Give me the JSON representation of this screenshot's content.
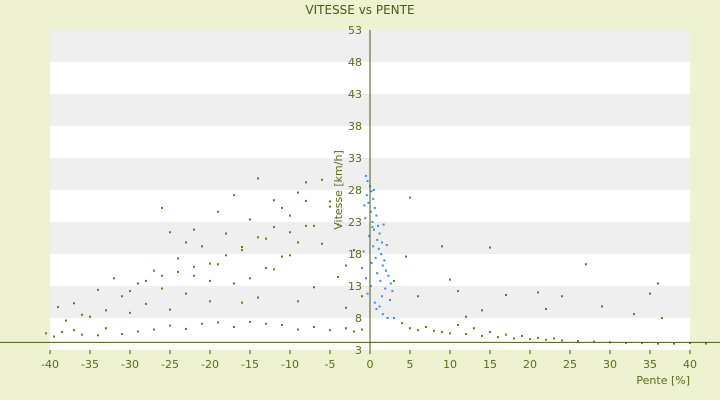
{
  "chart_data": {
    "type": "scatter",
    "title": "VITESSE vs PENTE",
    "xlabel": "Pente [%]",
    "ylabel": "Vitesse [km/h]",
    "xlim": [
      -40,
      40
    ],
    "ylim": [
      3,
      53
    ],
    "x_ticks": [
      -40,
      -35,
      -30,
      -25,
      -20,
      -15,
      -10,
      -5,
      0,
      5,
      10,
      15,
      20,
      25,
      30,
      35,
      40
    ],
    "y_ticks": [
      3,
      8,
      13,
      18,
      23,
      28,
      33,
      38,
      43,
      48,
      53
    ],
    "grid": true,
    "colors": {
      "background": "#eef2d0",
      "plot_band_light": "#ffffff",
      "plot_band_dark": "#efefef",
      "axis": "#4a5a14",
      "series_main": "#6b7a10",
      "series_highlight": "#3a8ee6"
    },
    "series": [
      {
        "color": "#6b7a10",
        "points": [
          [
            -40.5,
            5.6
          ],
          [
            -39.5,
            5.1
          ],
          [
            -38.5,
            5.8
          ],
          [
            -37,
            6.1
          ],
          [
            -36,
            5.4
          ],
          [
            -34,
            5.3
          ],
          [
            -33,
            6.4
          ],
          [
            -31,
            5.5
          ],
          [
            -29,
            5.9
          ],
          [
            -27,
            6.2
          ],
          [
            -25,
            6.8
          ],
          [
            -23,
            6.3
          ],
          [
            -21,
            7.1
          ],
          [
            -19,
            7.3
          ],
          [
            -17,
            6.6
          ],
          [
            -15,
            7.4
          ],
          [
            -13,
            7.1
          ],
          [
            -11,
            6.9
          ],
          [
            -9,
            6.2
          ],
          [
            -7,
            6.6
          ],
          [
            -5,
            6.1
          ],
          [
            -3,
            6.4
          ],
          [
            -2,
            5.9
          ],
          [
            -1,
            6.2
          ],
          [
            -39,
            9.7
          ],
          [
            -37,
            10.3
          ],
          [
            -36,
            8.5
          ],
          [
            -34,
            12.4
          ],
          [
            -33,
            9.2
          ],
          [
            -32,
            14.2
          ],
          [
            -31,
            11.4
          ],
          [
            -30,
            8.8
          ],
          [
            -29,
            13.4
          ],
          [
            -28,
            10.2
          ],
          [
            -27,
            15.4
          ],
          [
            -26,
            12.6
          ],
          [
            -25,
            9.3
          ],
          [
            -24,
            17.3
          ],
          [
            -23,
            11.8
          ],
          [
            -22,
            14.6
          ],
          [
            -21,
            19.2
          ],
          [
            -20,
            10.6
          ],
          [
            -19,
            16.4
          ],
          [
            -18,
            21.2
          ],
          [
            -17,
            13.4
          ],
          [
            -16,
            18.6
          ],
          [
            -15,
            23.4
          ],
          [
            -14,
            11.2
          ],
          [
            -13,
            20.4
          ],
          [
            -12,
            15.6
          ],
          [
            -11,
            25.2
          ],
          [
            -10,
            17.8
          ],
          [
            -9,
            27.6
          ],
          [
            -8,
            22.4
          ],
          [
            -7,
            12.8
          ],
          [
            -6,
            19.6
          ],
          [
            -5,
            26.2
          ],
          [
            -4,
            14.4
          ],
          [
            -3,
            9.6
          ],
          [
            -2,
            18.6
          ],
          [
            -26,
            25.2
          ],
          [
            -22,
            21.8
          ],
          [
            -19,
            24.6
          ],
          [
            -17,
            27.2
          ],
          [
            -12,
            26.4
          ],
          [
            -8,
            29.2
          ],
          [
            -6,
            29.6
          ],
          [
            -14,
            29.8
          ],
          [
            -23,
            19.8
          ],
          [
            -25,
            21.4
          ],
          [
            -20,
            13.8
          ],
          [
            -16,
            10.4
          ],
          [
            -30,
            12.2
          ],
          [
            -35,
            8.2
          ],
          [
            -38,
            7.6
          ],
          [
            -9,
            10.6
          ],
          [
            -4,
            22.6
          ],
          [
            -3,
            16.2
          ],
          [
            -1,
            11.4
          ],
          [
            -10,
            21.4
          ],
          [
            -20,
            16.5
          ],
          [
            -18,
            17.8
          ],
          [
            -16,
            19.1
          ],
          [
            -14,
            20.6
          ],
          [
            -12,
            22.2
          ],
          [
            -10,
            24.0
          ],
          [
            -8,
            26.3
          ],
          [
            -15,
            14.2
          ],
          [
            -13,
            15.8
          ],
          [
            -11,
            17.6
          ],
          [
            -9,
            19.8
          ],
          [
            -7,
            22.4
          ],
          [
            -5,
            25.4
          ],
          [
            -24,
            15.2
          ],
          [
            -22,
            16.0
          ],
          [
            -26,
            14.6
          ],
          [
            -28,
            13.8
          ],
          [
            4,
            7.2
          ],
          [
            5,
            6.4
          ],
          [
            6,
            6.1
          ],
          [
            7,
            6.6
          ],
          [
            8,
            6.0
          ],
          [
            9,
            5.8
          ],
          [
            10,
            5.6
          ],
          [
            12,
            5.5
          ],
          [
            14,
            5.2
          ],
          [
            16,
            5.0
          ],
          [
            18,
            4.8
          ],
          [
            20,
            4.7
          ],
          [
            22,
            4.6
          ],
          [
            24,
            4.5
          ],
          [
            26,
            4.4
          ],
          [
            28,
            4.3
          ],
          [
            30,
            4.2
          ],
          [
            32,
            4.1
          ],
          [
            34,
            4.1
          ],
          [
            36,
            4.0
          ],
          [
            38,
            4.0
          ],
          [
            40,
            4.1
          ],
          [
            42,
            4.0
          ],
          [
            11,
            6.9
          ],
          [
            13,
            6.4
          ],
          [
            15,
            5.8
          ],
          [
            17,
            5.4
          ],
          [
            19,
            5.2
          ],
          [
            21,
            4.9
          ],
          [
            23,
            4.8
          ],
          [
            5,
            26.8
          ],
          [
            9,
            19.2
          ],
          [
            15,
            19.0
          ],
          [
            10,
            14.0
          ],
          [
            11,
            12.2
          ],
          [
            17,
            11.6
          ],
          [
            21,
            12.0
          ],
          [
            24,
            11.4
          ],
          [
            27,
            16.4
          ],
          [
            35,
            11.8
          ],
          [
            36,
            13.4
          ],
          [
            33,
            8.6
          ],
          [
            36.5,
            8.0
          ],
          [
            4.5,
            17.6
          ],
          [
            3,
            13.8
          ],
          [
            29,
            9.8
          ],
          [
            14,
            9.2
          ],
          [
            6,
            11.4
          ],
          [
            12,
            8.2
          ],
          [
            22,
            9.4
          ]
        ]
      },
      {
        "color": "#3a8ee6",
        "points": [
          [
            -0.5,
            30.2
          ],
          [
            -0.3,
            29.4
          ],
          [
            0,
            28.6
          ],
          [
            0.2,
            27.8
          ],
          [
            -0.4,
            27.2
          ],
          [
            0.4,
            26.6
          ],
          [
            -0.2,
            26.0
          ],
          [
            0.6,
            25.2
          ],
          [
            0.1,
            24.6
          ],
          [
            0.8,
            24.0
          ],
          [
            -0.6,
            23.6
          ],
          [
            0.3,
            23.0
          ],
          [
            1,
            22.4
          ],
          [
            0.5,
            21.8
          ],
          [
            1.2,
            21.2
          ],
          [
            -0.1,
            20.8
          ],
          [
            0.9,
            20.2
          ],
          [
            1.5,
            19.8
          ],
          [
            0.4,
            19.2
          ],
          [
            1.1,
            18.8
          ],
          [
            -0.8,
            18.4
          ],
          [
            1.4,
            18.0
          ],
          [
            0.7,
            17.4
          ],
          [
            1.8,
            17.0
          ],
          [
            0.2,
            16.6
          ],
          [
            1.6,
            16.2
          ],
          [
            -1,
            15.8
          ],
          [
            2,
            15.4
          ],
          [
            0.9,
            15.0
          ],
          [
            2.3,
            14.6
          ],
          [
            -0.5,
            14.2
          ],
          [
            1.3,
            13.8
          ],
          [
            2.6,
            13.4
          ],
          [
            0.1,
            13.0
          ],
          [
            1.9,
            12.6
          ],
          [
            2.8,
            12.2
          ],
          [
            -0.3,
            11.8
          ],
          [
            1.5,
            11.4
          ],
          [
            2.5,
            10.8
          ],
          [
            0.6,
            10.4
          ],
          [
            1.2,
            9.8
          ],
          [
            0.8,
            9.4
          ],
          [
            1.6,
            8.6
          ],
          [
            2.2,
            8.0
          ],
          [
            3,
            8.0
          ],
          [
            0.3,
            22.2
          ],
          [
            -0.7,
            25.6
          ],
          [
            0.5,
            28.0
          ],
          [
            1.7,
            22.6
          ],
          [
            2.1,
            19.4
          ]
        ]
      }
    ]
  }
}
